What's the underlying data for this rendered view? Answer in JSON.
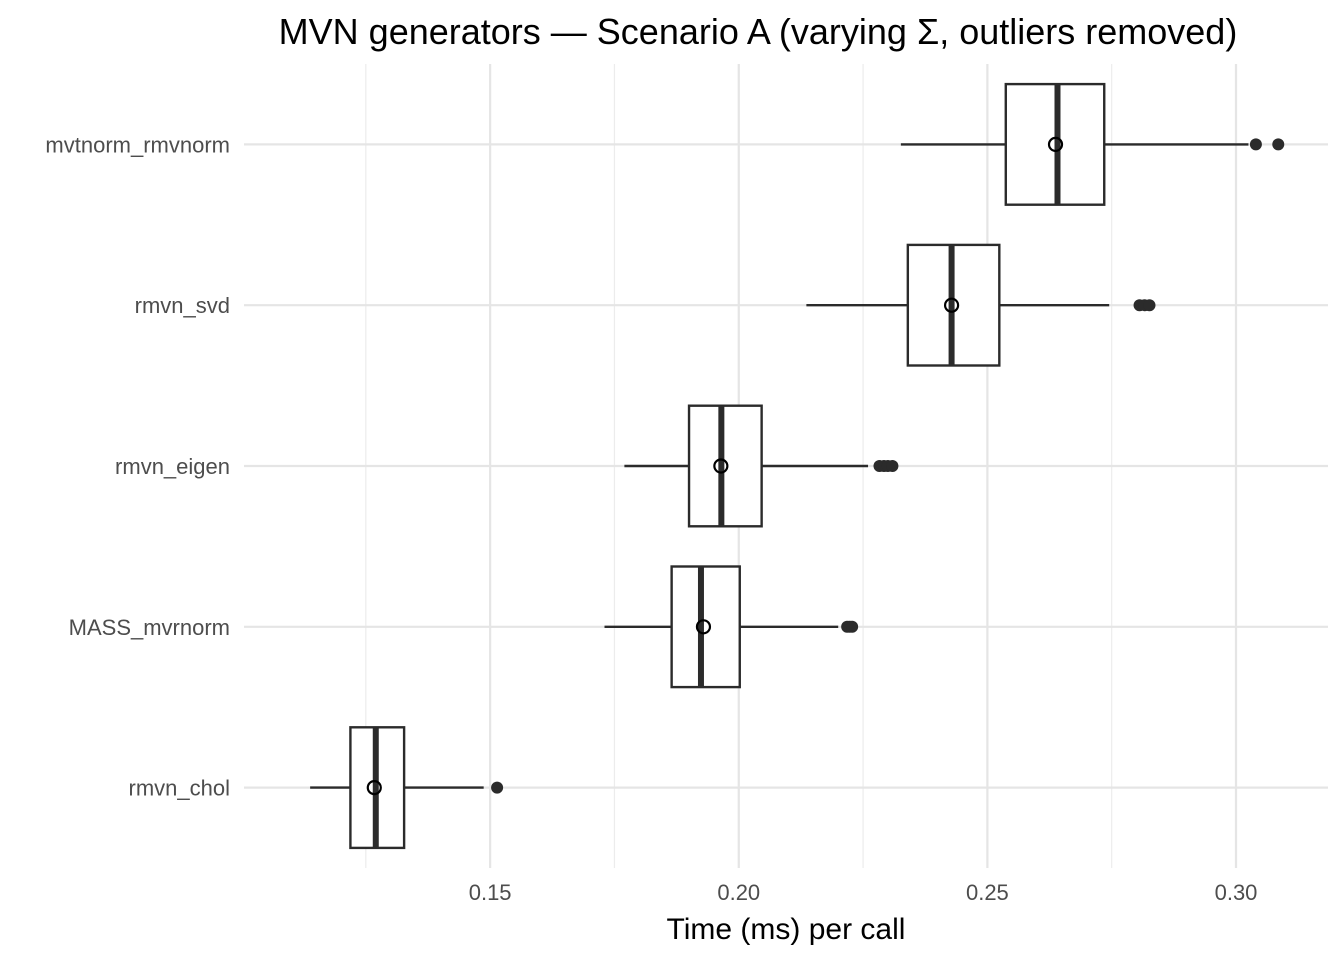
{
  "chart_data": {
    "type": "boxplot",
    "orientation": "horizontal",
    "title": "MVN generators — Scenario A (varying Σ, outliers removed)",
    "xlabel": "Time (ms) per call",
    "ylabel": "",
    "xlim": [
      0.1005,
      0.3185
    ],
    "x_ticks": [
      0.15,
      0.2,
      0.25,
      0.3
    ],
    "x_tick_labels": [
      "0.15",
      "0.20",
      "0.25",
      "0.30"
    ],
    "x_minor_ticks": [
      0.125,
      0.175,
      0.225,
      0.275
    ],
    "grid": true,
    "legend": "none",
    "colors": {
      "box_stroke": "#2b2b2b",
      "box_fill": "#ffffff",
      "grid": "#e5e5e5",
      "tick_text": "#4d4d4d"
    },
    "categories": [
      "rmvn_chol",
      "MASS_mvrnorm",
      "rmvn_eigen",
      "rmvn_svd",
      "mvtnorm_rmvnorm"
    ],
    "boxes": [
      {
        "label": "rmvn_chol",
        "whisker_low": 0.1138,
        "q1": 0.1219,
        "median": 0.127,
        "q3": 0.1327,
        "whisker_high": 0.1487,
        "mean": 0.1267,
        "outliers": [
          0.1514
        ]
      },
      {
        "label": "MASS_mvrnorm",
        "whisker_low": 0.173,
        "q1": 0.1865,
        "median": 0.1924,
        "q3": 0.2002,
        "whisker_high": 0.22,
        "mean": 0.1929,
        "outliers": [
          0.2218,
          0.2223,
          0.2228
        ]
      },
      {
        "label": "rmvn_eigen",
        "whisker_low": 0.177,
        "q1": 0.19,
        "median": 0.1965,
        "q3": 0.2046,
        "whisker_high": 0.226,
        "mean": 0.1964,
        "outliers": [
          0.2283,
          0.2292,
          0.23,
          0.2309
        ]
      },
      {
        "label": "rmvn_svd",
        "whisker_low": 0.2136,
        "q1": 0.234,
        "median": 0.2428,
        "q3": 0.2524,
        "whisker_high": 0.2745,
        "mean": 0.2428,
        "outliers": [
          0.2806,
          0.2816,
          0.2826
        ]
      },
      {
        "label": "mvtnorm_rmvnorm",
        "whisker_low": 0.2326,
        "q1": 0.2537,
        "median": 0.2641,
        "q3": 0.2735,
        "whisker_high": 0.3025,
        "mean": 0.2637,
        "outliers": [
          0.304,
          0.3085
        ]
      }
    ]
  }
}
